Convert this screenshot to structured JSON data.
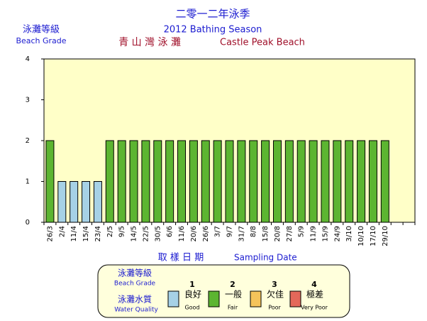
{
  "chart_data": {
    "type": "bar",
    "title": "二零一二年泳季",
    "subtitle": "2012 Bathing Season",
    "beach_zh": "青 山 灣 泳 灘",
    "beach_en": "Castle Peak Beach",
    "ylabel_zh": "泳灘等級",
    "ylabel_en": "Beach Grade",
    "xlabel_zh": "取 樣 日 期",
    "xlabel_en": "Sampling Date",
    "categories": [
      "26/3",
      "2/4",
      "11/4",
      "15/4",
      "23/4",
      "2/5",
      "9/5",
      "14/5",
      "22/5",
      "30/5",
      "6/6",
      "11/6",
      "20/6",
      "26/6",
      "3/7",
      "9/7",
      "31/7",
      "8/8",
      "15/8",
      "20/8",
      "27/8",
      "5/9",
      "11/9",
      "15/9",
      "24/9",
      "3/10",
      "10/10",
      "17/10",
      "29/10"
    ],
    "values": [
      2,
      1,
      1,
      1,
      1,
      2,
      2,
      2,
      2,
      2,
      2,
      2,
      2,
      2,
      2,
      2,
      2,
      2,
      2,
      2,
      2,
      2,
      2,
      2,
      2,
      2,
      2,
      2,
      2
    ],
    "ylim": [
      0,
      4
    ],
    "yticks": [
      0,
      1,
      2,
      3,
      4
    ],
    "legend": {
      "grade_zh": "泳灘等級",
      "grade_en": "Beach Grade",
      "quality_zh": "泳灘水質",
      "quality_en": "Water Quality",
      "items": [
        {
          "grade": 1,
          "label_zh": "良好",
          "label_en": "Good",
          "color": "#a6d1e6"
        },
        {
          "grade": 2,
          "label_zh": "一般",
          "label_en": "Fair",
          "color": "#5cb531"
        },
        {
          "grade": 3,
          "label_zh": "欠佳",
          "label_en": "Poor",
          "color": "#f5c35a"
        },
        {
          "grade": 4,
          "label_zh": "極差",
          "label_en": "Very Poor",
          "color": "#e4685a"
        }
      ]
    }
  }
}
